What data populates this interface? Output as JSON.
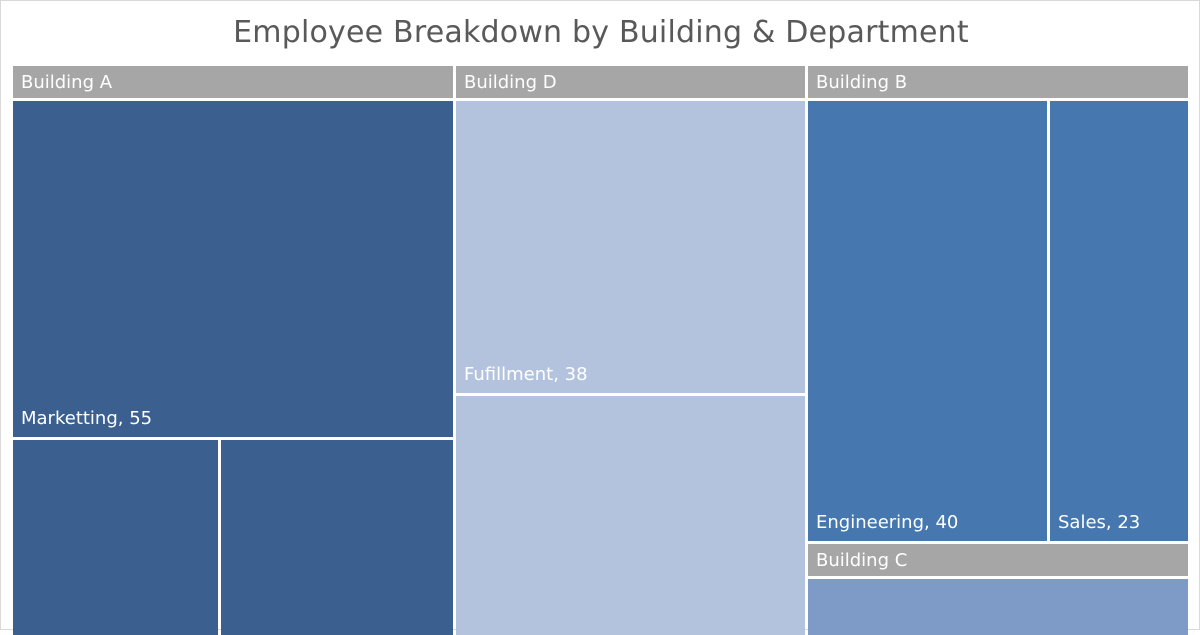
{
  "chart_data": {
    "type": "treemap",
    "title": "Employee Breakdown by Building & Department",
    "groups": [
      {
        "name": "Building A",
        "color": "#3b6090",
        "items": [
          {
            "label": "Marketting",
            "value": 55,
            "show_label": true
          },
          {
            "label": "",
            "value": 15,
            "show_label": false
          },
          {
            "label": "",
            "value": 17,
            "show_label": false
          }
        ]
      },
      {
        "name": "Building D",
        "color": "#b4c3dd",
        "items": [
          {
            "label": "Fufillment",
            "value": 38,
            "show_label": true
          },
          {
            "label": "",
            "value": 31,
            "show_label": false
          }
        ]
      },
      {
        "name": "Building B",
        "color": "#4677ae",
        "items": [
          {
            "label": "Engineering",
            "value": 40,
            "show_label": true
          },
          {
            "label": "Sales",
            "value": 23,
            "show_label": true
          }
        ]
      },
      {
        "name": "Building C",
        "color": "#7d9bc6",
        "items": [
          {
            "label": "",
            "value": 12,
            "show_label": false
          }
        ]
      }
    ]
  }
}
